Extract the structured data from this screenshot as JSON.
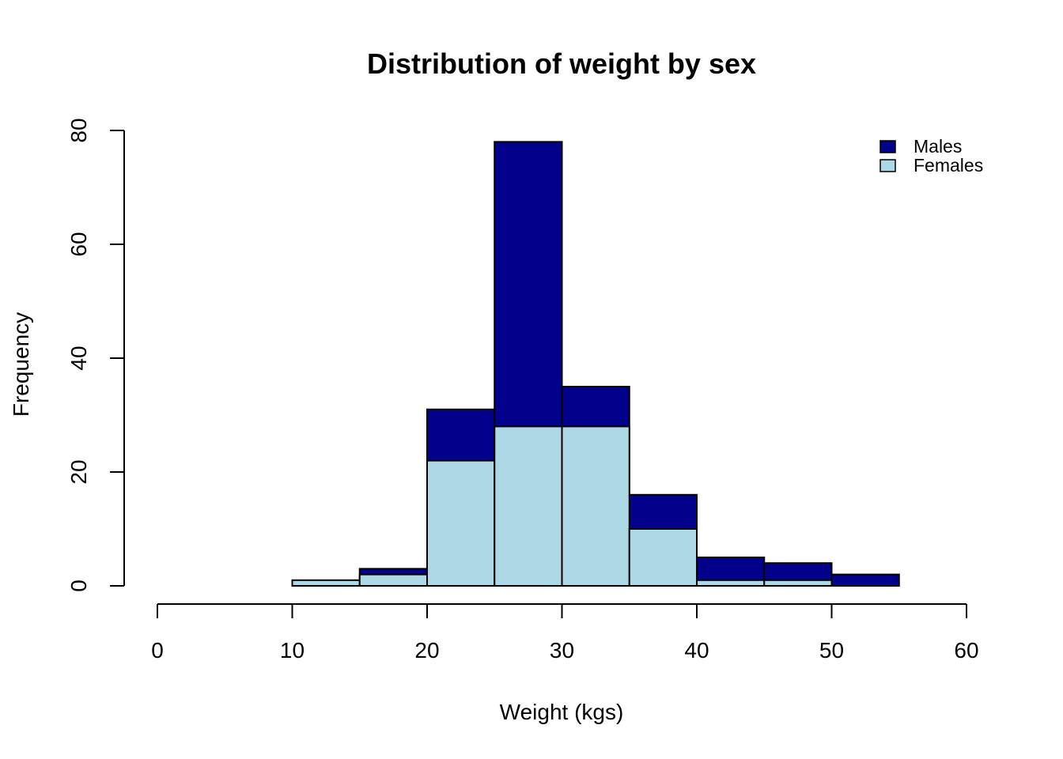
{
  "chart_data": {
    "type": "bar",
    "subtype": "histogram-overlaid",
    "title": "Distribution of weight by sex",
    "xlabel": "Weight (kgs)",
    "ylabel": "Frequency",
    "xlim": [
      0,
      60
    ],
    "ylim": [
      0,
      80
    ],
    "x_ticks": [
      0,
      10,
      20,
      30,
      40,
      50,
      60
    ],
    "y_ticks": [
      0,
      20,
      40,
      60,
      80
    ],
    "bin_edges": [
      10,
      15,
      20,
      25,
      30,
      35,
      40,
      45,
      50,
      55
    ],
    "series": [
      {
        "name": "Males",
        "color": "#00008b",
        "values": [
          0,
          3,
          31,
          78,
          35,
          16,
          5,
          4,
          2
        ]
      },
      {
        "name": "Females",
        "color": "#add8e6",
        "values": [
          1,
          2,
          22,
          28,
          28,
          10,
          1,
          1,
          0
        ]
      }
    ],
    "legend": {
      "position": "top-right",
      "entries": [
        {
          "label": "Males",
          "color": "#00008b"
        },
        {
          "label": "Females",
          "color": "#add8e6"
        }
      ]
    },
    "grid": false
  }
}
